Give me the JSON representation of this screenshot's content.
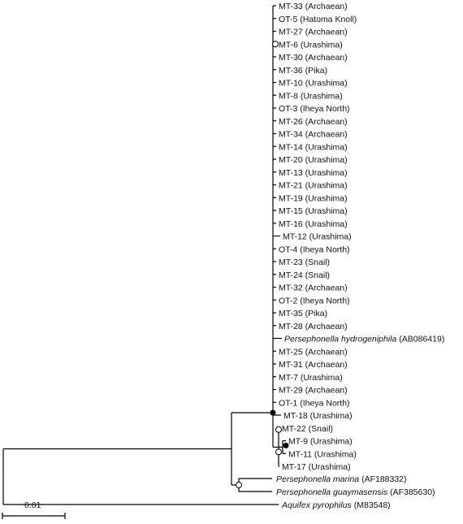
{
  "tree": {
    "big_clade_tips": [
      {
        "name": "MT-33",
        "suffix": " (Archaean)"
      },
      {
        "name": "OT-5",
        "suffix": " (Hatoma Knoll)"
      },
      {
        "name": "MT-27",
        "suffix": " (Archaean)"
      },
      {
        "name": "MT-6",
        "suffix": " (Urashima)"
      },
      {
        "name": "MT-30",
        "suffix": " (Archaean)"
      },
      {
        "name": "MT-36",
        "suffix": " (Pika)"
      },
      {
        "name": "MT-10",
        "suffix": " (Urashima)"
      },
      {
        "name": "MT-8",
        "suffix": " (Urashima)"
      },
      {
        "name": "OT-3",
        "suffix": " (Iheya North)"
      },
      {
        "name": "MT-26",
        "suffix": " (Archaean)"
      },
      {
        "name": "MT-34",
        "suffix": " (Archaean)"
      },
      {
        "name": "MT-14",
        "suffix": " (Urashima)"
      },
      {
        "name": "MT-20",
        "suffix": " (Urashima)"
      },
      {
        "name": "MT-13",
        "suffix": " (Urashima)"
      },
      {
        "name": "MT-21",
        "suffix": " (Urashima)"
      },
      {
        "name": "MT-19",
        "suffix": " (Urashima)"
      },
      {
        "name": "MT-15",
        "suffix": " (Urashima)"
      },
      {
        "name": "MT-16",
        "suffix": " (Urashima)"
      },
      {
        "name": "MT-12",
        "suffix": " (Urashima)"
      },
      {
        "name": "OT-4",
        "suffix": " (Iheya North)"
      },
      {
        "name": "MT-23",
        "suffix": " (Snail)"
      },
      {
        "name": "MT-24",
        "suffix": " (Snail)"
      },
      {
        "name": "MT-32",
        "suffix": " (Archaean)"
      },
      {
        "name": "OT-2",
        "suffix": " (Iheya North)"
      },
      {
        "name": "MT-35",
        "suffix": " (Pika)"
      },
      {
        "name": "MT-28",
        "suffix": " (Archaean)"
      },
      {
        "name": "Persephonella hydrogeniphila",
        "suffix": " (AB086419)",
        "italic": true
      },
      {
        "name": "MT-25",
        "suffix": " (Archaean)"
      },
      {
        "name": "MT-31",
        "suffix": " (Archaean)"
      },
      {
        "name": "MT-7",
        "suffix": " (Urashima)"
      },
      {
        "name": "MT-29",
        "suffix": " (Archaean)"
      },
      {
        "name": "OT-1",
        "suffix": " (Iheya North)"
      }
    ],
    "subclade_tips": [
      {
        "name": "MT-18",
        "suffix": " (Urashima)"
      },
      {
        "name": "MT-22",
        "suffix": " (Snail)"
      },
      {
        "name": "MT-9",
        "suffix": " (Urashima)"
      },
      {
        "name": "MT-11",
        "suffix": " (Urashima)"
      },
      {
        "name": "MT-17",
        "suffix": " (Urashima)"
      }
    ],
    "outgroups": [
      {
        "name": "Persephonella marina",
        "suffix": " (AF188332)",
        "italic": true
      },
      {
        "name": "Persephonella guaymasensis",
        "suffix": " (AF385630)",
        "italic": true
      },
      {
        "name": "Aquifex pyrophilus",
        "suffix": " (M83548)",
        "italic": true
      }
    ]
  },
  "scale_bar": {
    "label": "0.01"
  }
}
